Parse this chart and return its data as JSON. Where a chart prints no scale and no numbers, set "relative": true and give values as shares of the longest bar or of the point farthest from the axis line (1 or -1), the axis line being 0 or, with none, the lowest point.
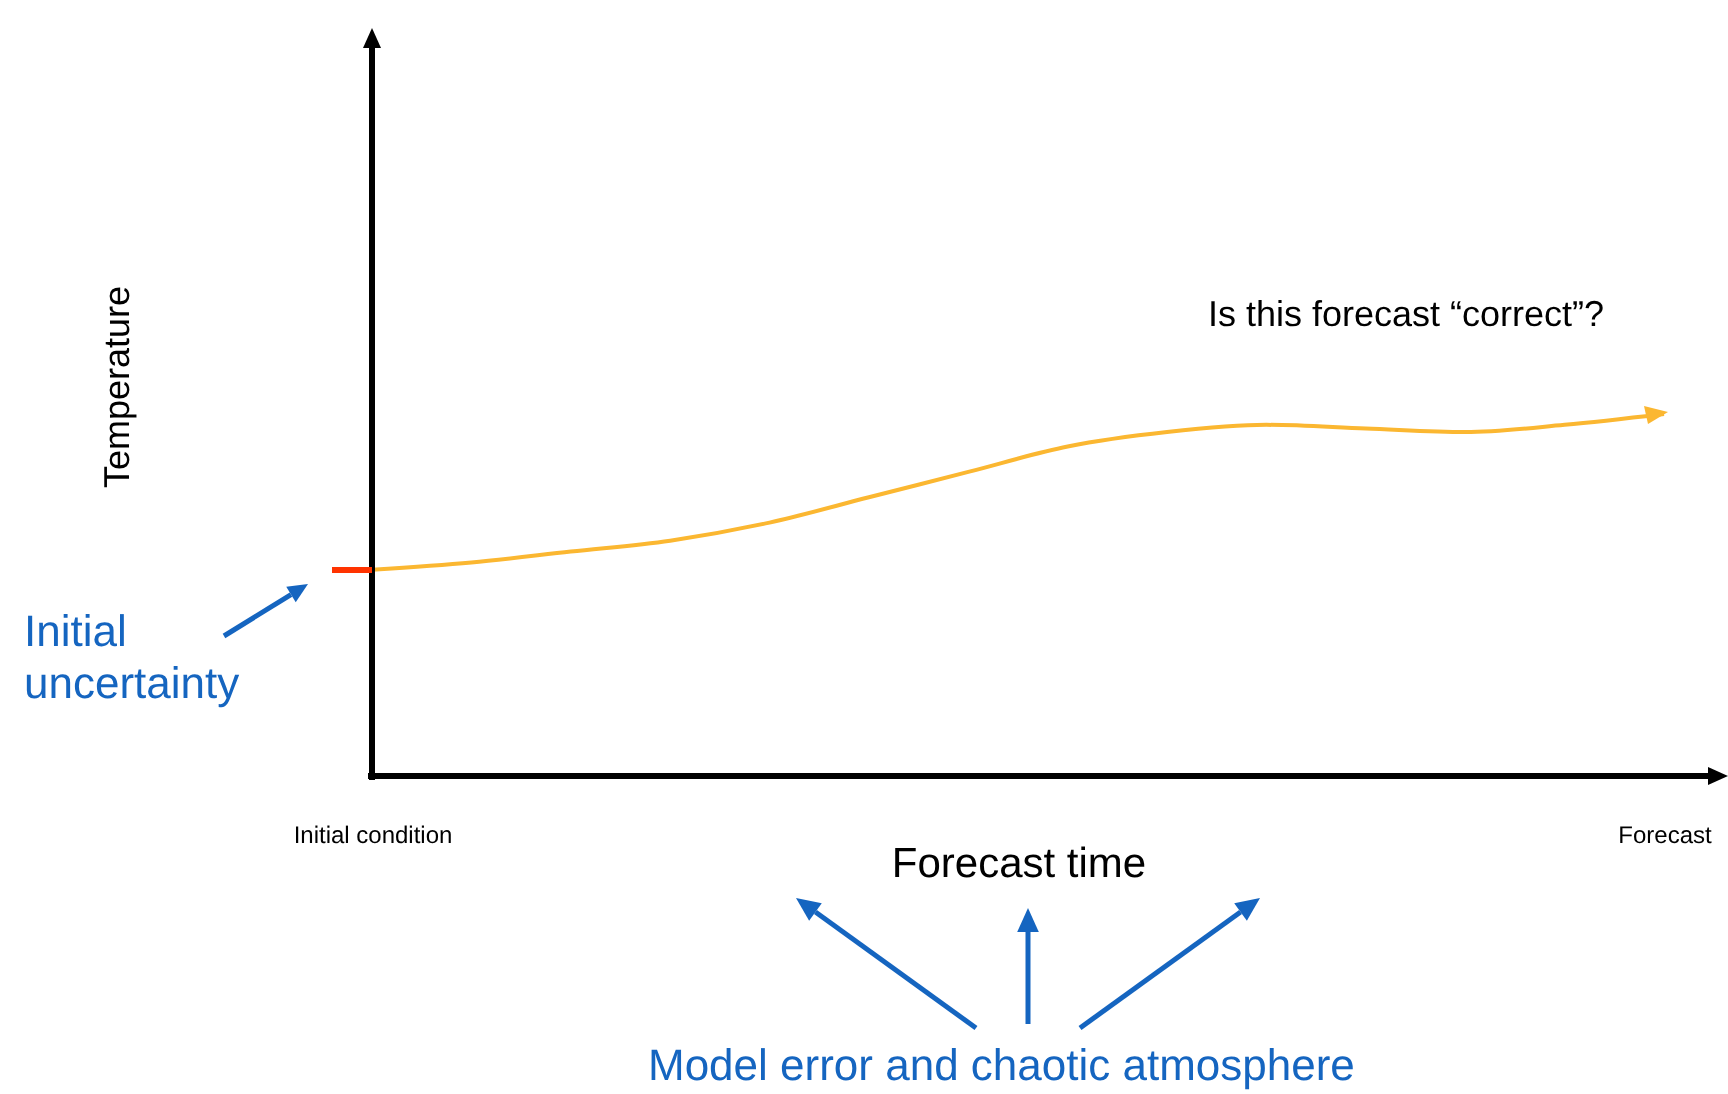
{
  "chart_data": {
    "type": "line",
    "relative": true,
    "xlabel": "Forecast time",
    "ylabel": "Temperature",
    "categories": [
      "Initial condition",
      null,
      null,
      null,
      null,
      null,
      null,
      null,
      null,
      null,
      null,
      null,
      null,
      "Forecast"
    ],
    "series": [
      {
        "color": "#fbb731",
        "values": [
          0.57,
          0.59,
          0.62,
          0.65,
          0.7,
          0.77,
          0.84,
          0.91,
          0.95,
          0.97,
          0.96,
          0.95,
          0.97,
          1
        ]
      }
    ],
    "annotations": [
      "Is this forecast “correct”?",
      "Initial\nuncertainty",
      "Model error and chaotic atmosphere"
    ],
    "grid": false,
    "marker": "none",
    "line_style": "solid"
  }
}
